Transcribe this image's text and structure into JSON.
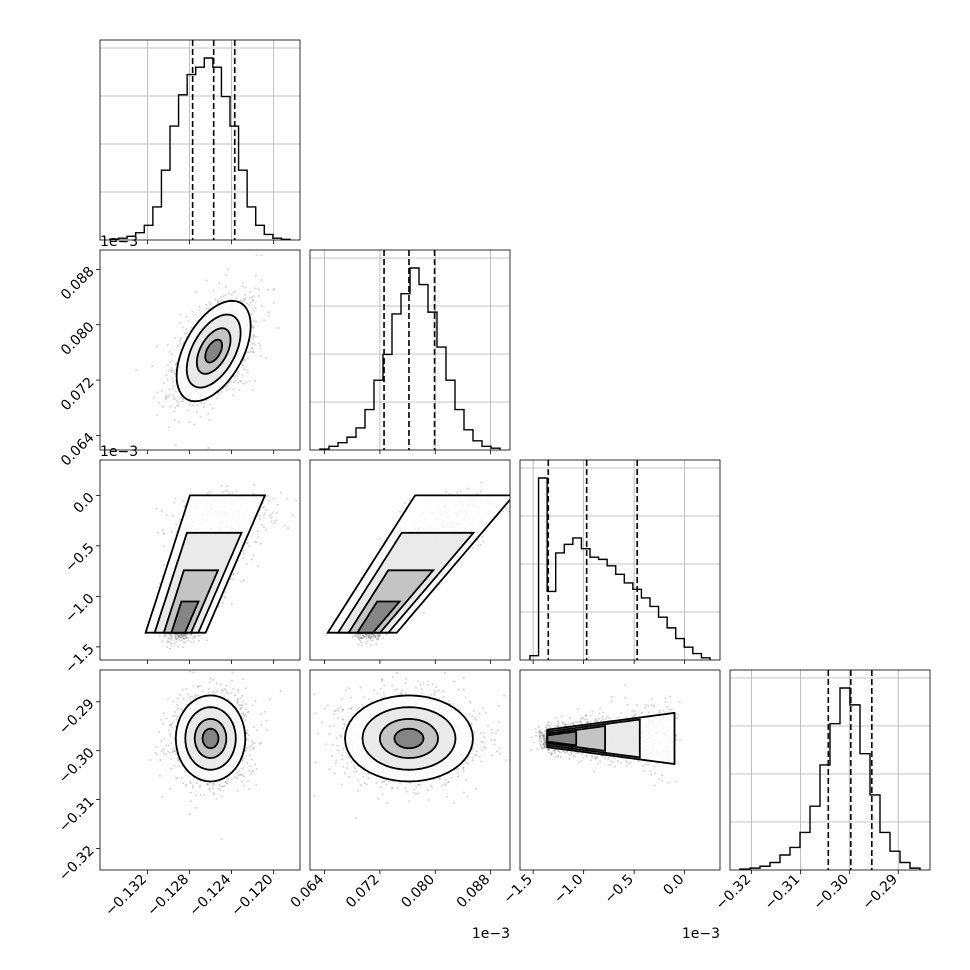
{
  "chart_data": {
    "type": "corner",
    "dims": [
      {
        "ticks": [
          -0.132,
          -0.128,
          -0.124,
          -0.12
        ],
        "tick_labels": [
          "−0.132",
          "−0.128",
          "−0.124",
          "−0.120"
        ],
        "range": [
          -0.1365,
          -0.1175
        ],
        "quantiles": [
          -0.1277,
          -0.1257,
          -0.1237
        ],
        "offset": ""
      },
      {
        "ticks": [
          0.064,
          0.072,
          0.08,
          0.088
        ],
        "tick_labels": [
          "0.064",
          "0.072",
          "0.080",
          "0.088"
        ],
        "range": [
          0.0619,
          0.0908
        ],
        "quantiles": [
          0.0726,
          0.0762,
          0.0799
        ],
        "offset": "1e−3"
      },
      {
        "ticks": [
          -1.5,
          -1.0,
          -0.5,
          0.0
        ],
        "tick_labels": [
          "−1.5",
          "−1.0",
          "−0.5",
          "0.0"
        ],
        "range": [
          -1.63,
          0.35
        ],
        "quantiles": [
          -1.35,
          -0.97,
          -0.47
        ],
        "offset": "1e−3"
      },
      {
        "ticks": [
          -0.32,
          -0.31,
          -0.3,
          -0.29
        ],
        "tick_labels": [
          "−0.32",
          "−0.31",
          "−0.30",
          "−0.29"
        ],
        "range": [
          -0.3244,
          -0.2835
        ],
        "quantiles": [
          -0.3043,
          -0.2997,
          -0.2954
        ],
        "offset": ""
      }
    ],
    "hist_1d": [
      [
        0.005,
        0.01,
        0.02,
        0.04,
        0.08,
        0.18,
        0.38,
        0.62,
        0.79,
        0.9,
        0.94,
        0.99,
        0.94,
        0.78,
        0.62,
        0.38,
        0.18,
        0.08,
        0.03,
        0.01,
        0.004
      ],
      [
        0.005,
        0.02,
        0.04,
        0.07,
        0.12,
        0.22,
        0.38,
        0.52,
        0.74,
        0.85,
        0.99,
        0.9,
        0.75,
        0.56,
        0.38,
        0.22,
        0.11,
        0.05,
        0.02,
        0.01
      ],
      [
        0.02,
        0.85,
        0.32,
        0.5,
        0.54,
        0.57,
        0.52,
        0.48,
        0.47,
        0.44,
        0.4,
        0.36,
        0.33,
        0.29,
        0.25,
        0.2,
        0.15,
        0.1,
        0.06,
        0.03,
        0.01
      ],
      [
        0.005,
        0.01,
        0.02,
        0.04,
        0.08,
        0.12,
        0.2,
        0.34,
        0.56,
        0.78,
        0.97,
        0.88,
        0.62,
        0.4,
        0.2,
        0.1,
        0.04,
        0.01
      ]
    ],
    "gauss": [
      {
        "row": 1,
        "col": 0,
        "mx": -0.1257,
        "my": 0.0762,
        "sx": 0.0016,
        "sy": 0.0033,
        "rho": 0.5
      },
      {
        "row": 3,
        "col": 0,
        "mx": -0.126,
        "my": -0.2975,
        "sx": 0.0015,
        "sy": 0.004,
        "rho": 0.0
      },
      {
        "row": 3,
        "col": 1,
        "mx": 0.0762,
        "my": -0.2975,
        "sx": 0.0042,
        "sy": 0.004,
        "rho": 0.0
      }
    ],
    "curved": [
      {
        "row": 2,
        "col": 0,
        "base": -1.36,
        "top": 0.0,
        "xmin": -0.129,
        "xmax": -0.124,
        "scat": 0.0019,
        "ys": 0.3
      },
      {
        "row": 2,
        "col": 1,
        "base": -1.36,
        "top": 0.0,
        "xmin": 0.07,
        "xmax": 0.085,
        "scat": 0.0025,
        "ys": 0.3
      }
    ],
    "wedge": {
      "row": 3,
      "col": 2,
      "xbase": -1.36,
      "xtop": -0.1,
      "my": -0.2975,
      "sy": 0.0032,
      "ys": 0.0012
    }
  }
}
